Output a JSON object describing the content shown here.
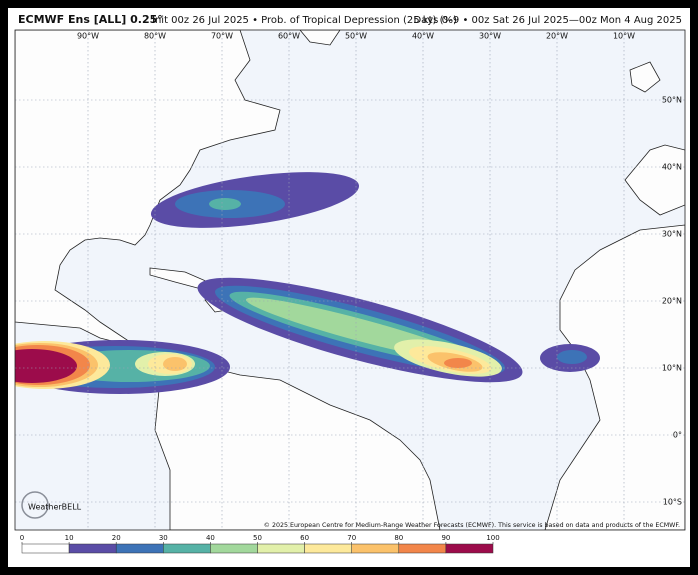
{
  "header": {
    "model": "ECMWF Ens [ALL] 0.25°",
    "product": "Init 00z 26 Jul 2025 • Prob. of Tropical Depression (25 kt) (%)",
    "valid": "Days 0–9 • 00z Sat 26 Jul 2025—00z Mon 4 Aug 2025"
  },
  "map": {
    "lon_labels": [
      "90°W",
      "80°W",
      "70°W",
      "60°W",
      "50°W",
      "40°W",
      "30°W",
      "20°W",
      "10°W"
    ],
    "lat_labels": [
      "50°N",
      "40°N",
      "30°N",
      "20°N",
      "10°N",
      "0°",
      "10°S"
    ],
    "copyright": "© 2025 European Centre for Medium-Range Weather Forecasts (ECMWF). This service is based on data and products of the ECMWF.",
    "logo": "WeatherBELL"
  },
  "colorbar": {
    "ticks": [
      0,
      10,
      20,
      30,
      40,
      50,
      60,
      70,
      80,
      90,
      100
    ],
    "colors": [
      "#ffffff",
      "#5a4ca6",
      "#3d73b7",
      "#56b2a6",
      "#a2d89c",
      "#e2f0aa",
      "#fde99b",
      "#fbc26b",
      "#f2864a",
      "#9c0c4b"
    ]
  }
}
